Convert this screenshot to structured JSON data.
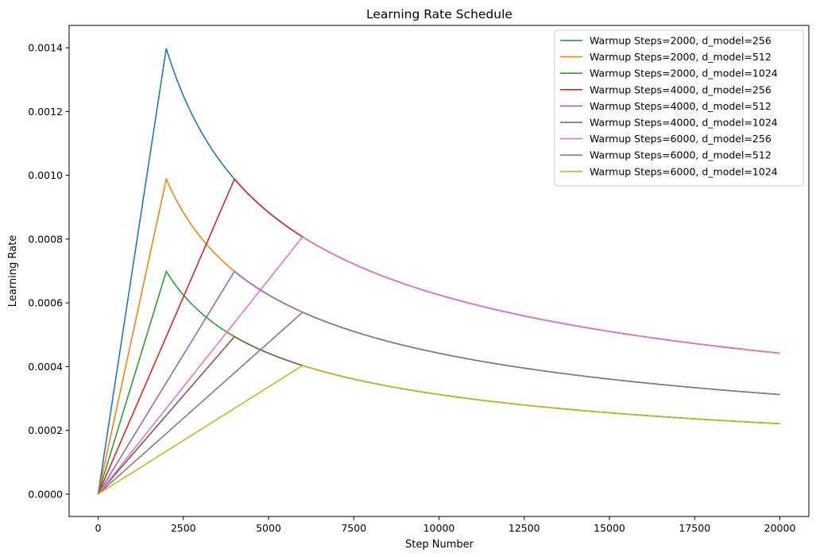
{
  "chart_data": {
    "type": "line",
    "title": "Learning Rate Schedule",
    "xlabel": "Step Number",
    "ylabel": "Learning Rate",
    "xlim": [
      -850,
      20850
    ],
    "ylim": [
      -7e-05,
      0.00147
    ],
    "xticks": [
      0,
      2500,
      5000,
      7500,
      10000,
      12500,
      15000,
      17500,
      20000
    ],
    "xtick_labels": [
      "0",
      "2500",
      "5000",
      "7500",
      "10000",
      "12500",
      "15000",
      "17500",
      "20000"
    ],
    "yticks": [
      0,
      0.0002,
      0.0004,
      0.0006,
      0.0008,
      0.001,
      0.0012,
      0.0014
    ],
    "ytick_labels": [
      "0.0000",
      "0.0002",
      "0.0004",
      "0.0006",
      "0.0008",
      "0.0010",
      "0.0012",
      "0.0014"
    ],
    "grid": false,
    "legend_position": "top-right",
    "x_range": [
      0,
      20000
    ],
    "series": [
      {
        "name": "Warmup Steps=2000, d_model=256",
        "warmup_steps": 2000,
        "d_model": 256,
        "color": "#1f77b4"
      },
      {
        "name": "Warmup Steps=2000, d_model=512",
        "warmup_steps": 2000,
        "d_model": 512,
        "color": "#ff7f0e"
      },
      {
        "name": "Warmup Steps=2000, d_model=1024",
        "warmup_steps": 2000,
        "d_model": 1024,
        "color": "#2ca02c"
      },
      {
        "name": "Warmup Steps=4000, d_model=256",
        "warmup_steps": 4000,
        "d_model": 256,
        "color": "#d62728"
      },
      {
        "name": "Warmup Steps=4000, d_model=512",
        "warmup_steps": 4000,
        "d_model": 512,
        "color": "#9467bd"
      },
      {
        "name": "Warmup Steps=4000, d_model=1024",
        "warmup_steps": 4000,
        "d_model": 1024,
        "color": "#8c564b"
      },
      {
        "name": "Warmup Steps=6000, d_model=256",
        "warmup_steps": 6000,
        "d_model": 256,
        "color": "#e377c2"
      },
      {
        "name": "Warmup Steps=6000, d_model=512",
        "warmup_steps": 6000,
        "d_model": 512,
        "color": "#7f7f7f"
      },
      {
        "name": "Warmup Steps=6000, d_model=1024",
        "warmup_steps": 6000,
        "d_model": 1024,
        "color": "#bcbd22"
      }
    ]
  }
}
